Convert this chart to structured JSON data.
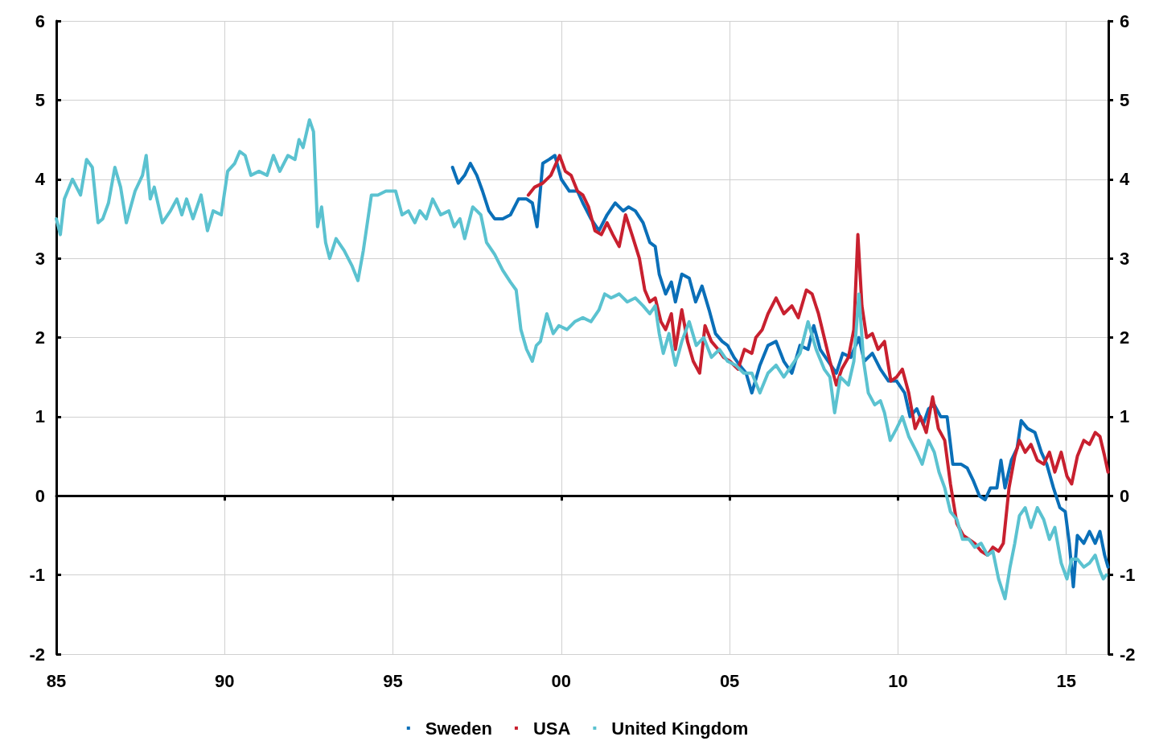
{
  "chart_data": {
    "type": "line",
    "xlim": [
      1985,
      2016.25
    ],
    "xticks": [
      {
        "value": 1985,
        "label": "85"
      },
      {
        "value": 1990,
        "label": "90"
      },
      {
        "value": 1995,
        "label": "95"
      },
      {
        "value": 2000,
        "label": "00"
      },
      {
        "value": 2005,
        "label": "05"
      },
      {
        "value": 2010,
        "label": "10"
      },
      {
        "value": 2015,
        "label": "15"
      }
    ],
    "ylim": [
      -2,
      6
    ],
    "yticks": [
      -2,
      -1,
      0,
      1,
      2,
      3,
      4,
      5,
      6
    ],
    "y2lim": [
      -2,
      6
    ],
    "y2ticks": [
      -2,
      -1,
      0,
      1,
      2,
      3,
      4,
      5,
      6
    ],
    "grid": true,
    "legend": "bottom",
    "marker": "none",
    "line_style": "solid",
    "series": [
      {
        "name": "Sweden",
        "color": "#0a6fb8",
        "x": [
          1996.77,
          1996.94,
          1997.13,
          1997.3,
          1997.49,
          1997.66,
          1997.85,
          1998.02,
          1998.26,
          1998.49,
          1998.73,
          1998.97,
          1999.14,
          1999.28,
          1999.45,
          1999.64,
          1999.81,
          2000.0,
          2000.24,
          2000.48,
          2000.64,
          2000.88,
          2001.12,
          2001.36,
          2001.6,
          2001.84,
          2002.0,
          2002.2,
          2002.43,
          2002.63,
          2002.79,
          2002.91,
          2003.1,
          2003.27,
          2003.39,
          2003.58,
          2003.8,
          2003.99,
          2004.18,
          2004.39,
          2004.58,
          2004.78,
          2004.94,
          2005.13,
          2005.3,
          2005.49,
          2005.66,
          2005.9,
          2006.14,
          2006.38,
          2006.61,
          2006.85,
          2007.09,
          2007.33,
          2007.5,
          2007.69,
          2007.93,
          2008.17,
          2008.36,
          2008.6,
          2008.84,
          2009.0,
          2009.24,
          2009.48,
          2009.72,
          2009.96,
          2010.2,
          2010.36,
          2010.56,
          2010.75,
          2010.91,
          2011.08,
          2011.27,
          2011.46,
          2011.63,
          2011.87,
          2012.06,
          2012.23,
          2012.42,
          2012.59,
          2012.75,
          2012.94,
          2013.06,
          2013.18,
          2013.37,
          2013.54,
          2013.66,
          2013.85,
          2014.07,
          2014.26,
          2014.42,
          2014.62,
          2014.81,
          2014.97,
          2015.09,
          2015.21,
          2015.33,
          2015.52,
          2015.69,
          2015.86,
          2016.0,
          2016.14,
          2016.24
        ],
        "values": [
          4.15,
          3.95,
          4.05,
          4.2,
          4.05,
          3.85,
          3.6,
          3.5,
          3.5,
          3.55,
          3.75,
          3.75,
          3.7,
          3.4,
          4.2,
          4.25,
          4.3,
          4.0,
          3.85,
          3.85,
          3.7,
          3.5,
          3.35,
          3.55,
          3.7,
          3.6,
          3.65,
          3.6,
          3.45,
          3.2,
          3.15,
          2.8,
          2.55,
          2.7,
          2.45,
          2.8,
          2.75,
          2.45,
          2.65,
          2.35,
          2.05,
          1.95,
          1.9,
          1.75,
          1.65,
          1.55,
          1.3,
          1.65,
          1.9,
          1.95,
          1.7,
          1.55,
          1.9,
          1.85,
          2.15,
          1.85,
          1.7,
          1.55,
          1.8,
          1.75,
          2.0,
          1.7,
          1.8,
          1.6,
          1.45,
          1.45,
          1.3,
          1.0,
          1.1,
          0.9,
          1.1,
          1.15,
          1.0,
          1.0,
          0.4,
          0.4,
          0.35,
          0.2,
          0.0,
          -0.05,
          0.1,
          0.1,
          0.45,
          0.1,
          0.45,
          0.6,
          0.95,
          0.85,
          0.8,
          0.55,
          0.4,
          0.1,
          -0.15,
          -0.2,
          -0.6,
          -1.15,
          -0.5,
          -0.6,
          -0.45,
          -0.6,
          -0.45,
          -0.75,
          -0.9
        ]
      },
      {
        "name": "USA",
        "color": "#c8202f",
        "x": [
          1999.02,
          1999.21,
          1999.45,
          1999.69,
          1999.95,
          2000.12,
          2000.29,
          2000.48,
          2000.64,
          2000.81,
          2001.0,
          2001.19,
          2001.36,
          2001.53,
          2001.72,
          2001.91,
          2002.1,
          2002.32,
          2002.48,
          2002.63,
          2002.79,
          2002.96,
          2003.1,
          2003.27,
          2003.39,
          2003.58,
          2003.75,
          2003.92,
          2004.11,
          2004.27,
          2004.46,
          2004.66,
          2004.82,
          2005.01,
          2005.25,
          2005.44,
          2005.66,
          2005.78,
          2005.97,
          2006.14,
          2006.38,
          2006.61,
          2006.85,
          2007.04,
          2007.28,
          2007.45,
          2007.64,
          2007.81,
          2007.98,
          2008.17,
          2008.33,
          2008.53,
          2008.69,
          2008.81,
          2008.93,
          2009.07,
          2009.24,
          2009.41,
          2009.6,
          2009.79,
          2009.96,
          2010.13,
          2010.32,
          2010.51,
          2010.67,
          2010.84,
          2011.03,
          2011.2,
          2011.39,
          2011.56,
          2011.75,
          2011.94,
          2012.11,
          2012.28,
          2012.47,
          2012.66,
          2012.82,
          2012.99,
          2013.13,
          2013.3,
          2013.47,
          2013.61,
          2013.78,
          2013.95,
          2014.14,
          2014.33,
          2014.5,
          2014.66,
          2014.85,
          2015.02,
          2015.16,
          2015.33,
          2015.52,
          2015.69,
          2015.86,
          2016.0,
          2016.14,
          2016.24
        ],
        "values": [
          3.8,
          3.9,
          3.95,
          4.05,
          4.3,
          4.1,
          4.05,
          3.85,
          3.8,
          3.65,
          3.35,
          3.3,
          3.45,
          3.3,
          3.15,
          3.55,
          3.3,
          3.0,
          2.6,
          2.45,
          2.5,
          2.2,
          2.1,
          2.3,
          1.85,
          2.35,
          1.95,
          1.7,
          1.55,
          2.15,
          1.95,
          1.85,
          1.75,
          1.7,
          1.6,
          1.85,
          1.8,
          2.0,
          2.1,
          2.3,
          2.5,
          2.3,
          2.4,
          2.25,
          2.6,
          2.55,
          2.3,
          2.0,
          1.7,
          1.4,
          1.6,
          1.75,
          2.1,
          3.3,
          2.4,
          2.0,
          2.05,
          1.85,
          1.95,
          1.45,
          1.5,
          1.6,
          1.3,
          0.85,
          1.0,
          0.8,
          1.25,
          0.85,
          0.7,
          0.15,
          -0.35,
          -0.5,
          -0.55,
          -0.6,
          -0.7,
          -0.75,
          -0.65,
          -0.7,
          -0.6,
          0.1,
          0.5,
          0.7,
          0.55,
          0.65,
          0.45,
          0.4,
          0.55,
          0.3,
          0.55,
          0.25,
          0.15,
          0.5,
          0.7,
          0.65,
          0.8,
          0.75,
          0.5,
          0.3
        ]
      },
      {
        "name": "United Kingdom",
        "color": "#5bc2d0",
        "x": [
          1985.0,
          1985.12,
          1985.24,
          1985.48,
          1985.72,
          1985.9,
          1986.07,
          1986.24,
          1986.38,
          1986.55,
          1986.74,
          1986.91,
          1987.08,
          1987.34,
          1987.56,
          1987.67,
          1987.79,
          1987.91,
          1988.15,
          1988.39,
          1988.58,
          1988.73,
          1988.87,
          1989.06,
          1989.3,
          1989.49,
          1989.66,
          1989.9,
          1990.09,
          1990.3,
          1990.45,
          1990.61,
          1990.78,
          1991.02,
          1991.26,
          1991.45,
          1991.64,
          1991.88,
          1992.09,
          1992.21,
          1992.33,
          1992.52,
          1992.64,
          1992.76,
          1992.88,
          1993.0,
          1993.12,
          1993.31,
          1993.55,
          1993.79,
          1993.96,
          1994.12,
          1994.36,
          1994.55,
          1994.79,
          1995.08,
          1995.27,
          1995.46,
          1995.65,
          1995.8,
          1995.99,
          1996.18,
          1996.42,
          1996.66,
          1996.82,
          1996.99,
          1997.13,
          1997.37,
          1997.61,
          1997.78,
          1998.02,
          1998.26,
          1998.49,
          1998.66,
          1998.8,
          1998.97,
          1999.14,
          1999.26,
          1999.38,
          1999.57,
          1999.76,
          1999.93,
          2000.17,
          2000.4,
          2000.64,
          2000.88,
          2001.12,
          2001.29,
          2001.48,
          2001.72,
          2001.96,
          2002.2,
          2002.43,
          2002.63,
          2002.79,
          2002.91,
          2003.03,
          2003.2,
          2003.39,
          2003.58,
          2003.8,
          2004.01,
          2004.23,
          2004.46,
          2004.7,
          2004.94,
          2005.18,
          2005.42,
          2005.66,
          2005.9,
          2006.14,
          2006.38,
          2006.61,
          2006.85,
          2007.09,
          2007.33,
          2007.57,
          2007.81,
          2007.98,
          2008.12,
          2008.29,
          2008.53,
          2008.69,
          2008.84,
          2008.98,
          2009.12,
          2009.31,
          2009.48,
          2009.6,
          2009.77,
          2009.96,
          2010.13,
          2010.32,
          2010.56,
          2010.72,
          2010.91,
          2011.08,
          2011.22,
          2011.39,
          2011.56,
          2011.75,
          2011.92,
          2012.11,
          2012.28,
          2012.47,
          2012.66,
          2012.82,
          2012.99,
          2013.18,
          2013.33,
          2013.47,
          2013.61,
          2013.78,
          2013.95,
          2014.14,
          2014.33,
          2014.5,
          2014.66,
          2014.85,
          2015.02,
          2015.16,
          2015.33,
          2015.52,
          2015.69,
          2015.86,
          2016.0,
          2016.1,
          2016.19
        ],
        "values": [
          3.5,
          3.3,
          3.75,
          4.0,
          3.8,
          4.25,
          4.15,
          3.45,
          3.5,
          3.7,
          4.15,
          3.9,
          3.45,
          3.85,
          4.05,
          4.3,
          3.75,
          3.9,
          3.45,
          3.6,
          3.75,
          3.55,
          3.75,
          3.5,
          3.8,
          3.35,
          3.6,
          3.55,
          4.1,
          4.2,
          4.35,
          4.3,
          4.05,
          4.1,
          4.05,
          4.3,
          4.1,
          4.3,
          4.25,
          4.5,
          4.4,
          4.75,
          4.6,
          3.4,
          3.65,
          3.2,
          3.0,
          3.25,
          3.1,
          2.9,
          2.72,
          3.1,
          3.8,
          3.8,
          3.85,
          3.85,
          3.55,
          3.6,
          3.45,
          3.6,
          3.5,
          3.75,
          3.55,
          3.6,
          3.4,
          3.5,
          3.25,
          3.65,
          3.55,
          3.2,
          3.05,
          2.85,
          2.7,
          2.6,
          2.1,
          1.85,
          1.7,
          1.9,
          1.95,
          2.3,
          2.05,
          2.15,
          2.1,
          2.2,
          2.25,
          2.2,
          2.35,
          2.55,
          2.5,
          2.55,
          2.45,
          2.5,
          2.4,
          2.3,
          2.4,
          2.05,
          1.8,
          2.05,
          1.65,
          1.95,
          2.2,
          1.9,
          2.0,
          1.75,
          1.85,
          1.7,
          1.65,
          1.55,
          1.55,
          1.3,
          1.55,
          1.65,
          1.5,
          1.65,
          1.8,
          2.2,
          1.85,
          1.6,
          1.5,
          1.05,
          1.5,
          1.4,
          1.7,
          2.55,
          1.7,
          1.3,
          1.15,
          1.2,
          1.05,
          0.7,
          0.85,
          1.0,
          0.75,
          0.55,
          0.4,
          0.7,
          0.55,
          0.3,
          0.1,
          -0.2,
          -0.3,
          -0.55,
          -0.55,
          -0.65,
          -0.6,
          -0.75,
          -0.7,
          -1.05,
          -1.3,
          -0.9,
          -0.6,
          -0.25,
          -0.15,
          -0.4,
          -0.15,
          -0.3,
          -0.55,
          -0.4,
          -0.85,
          -1.05,
          -0.8,
          -0.8,
          -0.9,
          -0.85,
          -0.75,
          -0.95,
          -1.05,
          -1.0
        ]
      }
    ]
  }
}
